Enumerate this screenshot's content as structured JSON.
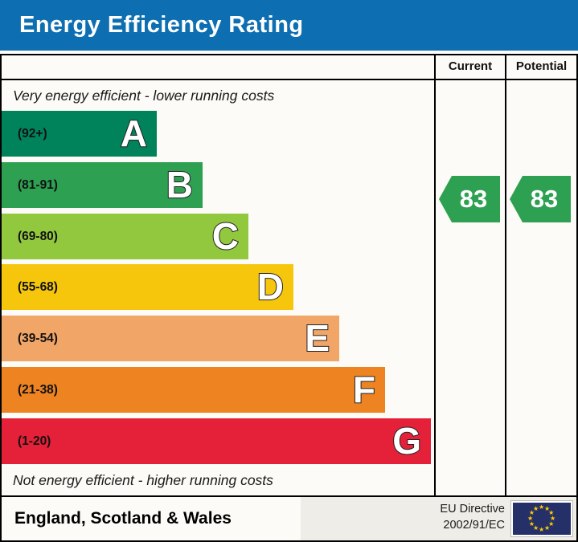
{
  "title": "Energy Efficiency Rating",
  "table": {
    "current_header": "Current",
    "potential_header": "Potential"
  },
  "captions": {
    "top": "Very energy efficient - lower running costs",
    "bottom": "Not energy efficient - higher running costs"
  },
  "chart_data": {
    "type": "bar",
    "title": "Energy Efficiency Rating",
    "bands": [
      {
        "letter": "A",
        "range": "(92+)",
        "min": 92,
        "max": 100,
        "color": "#00835a"
      },
      {
        "letter": "B",
        "range": "(81-91)",
        "min": 81,
        "max": 91,
        "color": "#2ea052"
      },
      {
        "letter": "C",
        "range": "(69-80)",
        "min": 69,
        "max": 80,
        "color": "#92c83e"
      },
      {
        "letter": "D",
        "range": "(55-68)",
        "min": 55,
        "max": 68,
        "color": "#f6c60d"
      },
      {
        "letter": "E",
        "range": "(39-54)",
        "min": 39,
        "max": 54,
        "color": "#f1a566"
      },
      {
        "letter": "F",
        "range": "(21-38)",
        "min": 21,
        "max": 38,
        "color": "#ee8322"
      },
      {
        "letter": "G",
        "range": "(1-20)",
        "min": 1,
        "max": 20,
        "color": "#e42138"
      }
    ],
    "current": {
      "value": "83",
      "band": "B"
    },
    "potential": {
      "value": "83",
      "band": "B"
    },
    "arrow_color": "#2ea052",
    "legend_position": "none",
    "grid": false
  },
  "footer": {
    "region": "England, Scotland & Wales",
    "directive": {
      "line1": "EU Directive",
      "line2": "2002/91/EC"
    }
  },
  "colors": {
    "header_bg": "#0d6eb1",
    "eu_flag_bg": "#253069",
    "eu_star": "#ffcc00"
  }
}
